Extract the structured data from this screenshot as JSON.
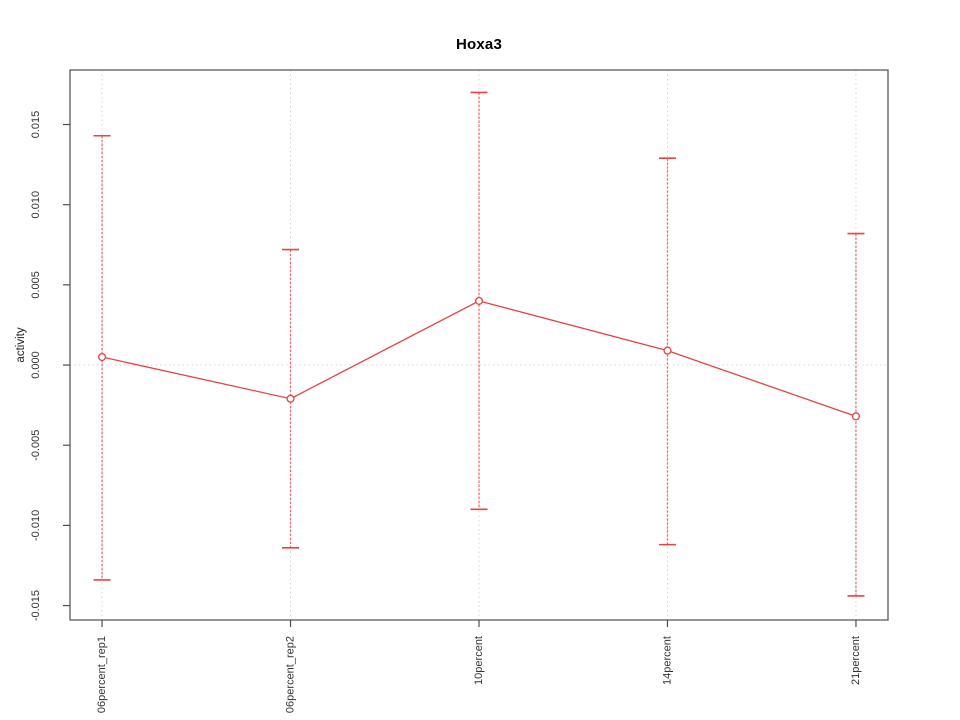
{
  "page": {
    "background": "#ffffff"
  },
  "chart_data": {
    "type": "line",
    "title": "Hoxa3",
    "xlabel": "",
    "ylabel": "activity",
    "categories": [
      "06percent_rep1",
      "06percent_rep2",
      "10percent",
      "14percent",
      "21percent"
    ],
    "series": [
      {
        "name": "Hoxa3 activity",
        "values": [
          0.0005,
          -0.0021,
          0.004,
          0.0009,
          -0.0032
        ],
        "error_upper": [
          0.0143,
          0.0072,
          0.017,
          0.0129,
          0.0082
        ],
        "error_lower": [
          -0.0134,
          -0.0114,
          -0.009,
          -0.0112,
          -0.0144
        ]
      }
    ],
    "yticks": [
      -0.015,
      -0.01,
      -0.005,
      0,
      0.005,
      0.01,
      0.015
    ],
    "ytick_labels": [
      "-0.015",
      "-0.010",
      "-0.005",
      "0.000",
      "0.005",
      "0.010",
      "0.015"
    ],
    "ylim": [
      -0.0159,
      0.0184
    ],
    "grid": {
      "vertical_at_categories": true,
      "horizontal_at_zero": true,
      "style": "dotted"
    },
    "legend_position": "none",
    "colors": {
      "series": "#e8433f",
      "error_bar": "#ef5350",
      "point_fill": "#ffffff",
      "grid": "#d6d6d6",
      "axis": "#4d4d4d",
      "tick_text": "#333333",
      "title_text": "#000000"
    }
  }
}
